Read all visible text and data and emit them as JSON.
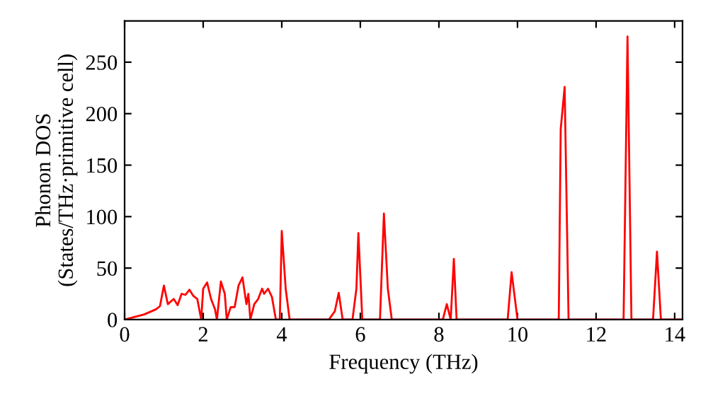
{
  "chart_data": {
    "type": "line",
    "xlabel": "Frequency (THz)",
    "ylabel": "Phonon DOS\n(States/THz·primitive cell)",
    "xlim": [
      0,
      14.2
    ],
    "ylim": [
      0,
      290
    ],
    "xticks": [
      0,
      2,
      4,
      6,
      8,
      10,
      12,
      14
    ],
    "yticks": [
      0,
      50,
      100,
      150,
      200,
      250
    ],
    "grid": false,
    "marker": "none",
    "line_style": "solid",
    "series": [
      {
        "color": "#ff0000",
        "x": [
          0,
          0.5,
          0.8,
          0.9,
          1.0,
          1.1,
          1.25,
          1.35,
          1.45,
          1.55,
          1.65,
          1.75,
          1.85,
          1.95,
          2.0,
          2.1,
          2.2,
          2.3,
          2.35,
          2.45,
          2.55,
          2.6,
          2.7,
          2.8,
          2.9,
          3.0,
          3.1,
          3.15,
          3.2,
          3.3,
          3.4,
          3.5,
          3.55,
          3.65,
          3.75,
          3.85,
          3.95,
          4.0,
          4.1,
          4.2,
          5.2,
          5.35,
          5.45,
          5.55,
          5.8,
          5.9,
          5.95,
          6.05,
          6.5,
          6.6,
          6.7,
          6.8,
          8.1,
          8.2,
          8.3,
          8.38,
          8.45,
          9.75,
          9.85,
          10.0,
          11.05,
          11.1,
          11.2,
          11.3,
          12.7,
          12.8,
          12.9,
          13.45,
          13.55,
          13.65,
          14.2
        ],
        "values": [
          0,
          5,
          10,
          13,
          33,
          15,
          20,
          14,
          25,
          24,
          29,
          23,
          20,
          0,
          30,
          36,
          20,
          10,
          0,
          37,
          25,
          0,
          12,
          12,
          33,
          41,
          15,
          25,
          0,
          15,
          20,
          30,
          25,
          30,
          22,
          0,
          0,
          86,
          30,
          0,
          0,
          8,
          26,
          0,
          0,
          30,
          84,
          0,
          0,
          103,
          30,
          0,
          0,
          15,
          0,
          59,
          0,
          0,
          46,
          0,
          0,
          185,
          226,
          0,
          0,
          275,
          0,
          0,
          66,
          0,
          0
        ]
      }
    ]
  }
}
